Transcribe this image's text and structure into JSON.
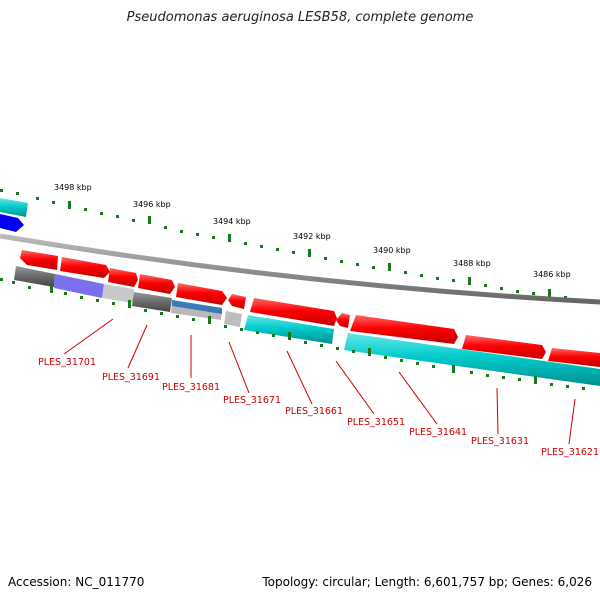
{
  "header": {
    "title": "Pseudomonas aeruginosa LESB58, complete genome"
  },
  "footer": {
    "accession": "Accession: NC_011770",
    "topology": "Topology: circular; Length: 6,601,757 bp; Genes: 6,026"
  },
  "scale": {
    "tick_labels": [
      "3498 kbp",
      "3496 kbp",
      "3494 kbp",
      "3492 kbp",
      "3490 kbp",
      "3488 kbp",
      "3486 kbp"
    ]
  },
  "genes": [
    "PLES_31701",
    "PLES_31691",
    "PLES_31681",
    "PLES_31671",
    "PLES_31661",
    "PLES_31651",
    "PLES_31641",
    "PLES_31631",
    "PLES_31621"
  ],
  "colors": {
    "forward_gene": "#ff0000",
    "reverse_gene": "#00cccc",
    "rna_gene": "#0000ee",
    "pseudogene": "#777777",
    "tick": "#1a7a1a",
    "label": "#cc0000",
    "backbone": "#888888"
  }
}
